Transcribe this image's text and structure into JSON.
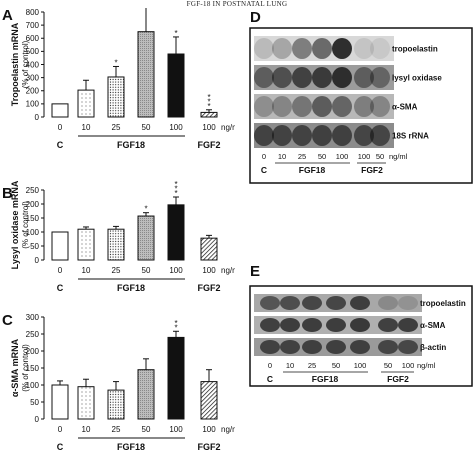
{
  "header": "FGF-18 IN POSTNATAL LUNG",
  "colors": {
    "axis": "#111111",
    "bar_fill": "#ffffff",
    "bar_dark": "#111111",
    "band": "#2a2a2a"
  },
  "chart_data": [
    {
      "type": "bar",
      "panel_letter": "A",
      "ylabel_lines": [
        "Tropoelastin mRNA",
        "(% of control)"
      ],
      "ylim": [
        0,
        800
      ],
      "yticks": [
        "0",
        "100",
        "200",
        "300",
        "400",
        "500",
        "600",
        "700",
        "800"
      ],
      "categories": [
        "0",
        "10",
        "25",
        "50",
        "100",
        "100"
      ],
      "values": [
        100,
        205,
        305,
        650,
        480,
        35
      ],
      "errors": [
        0,
        75,
        80,
        210,
        130,
        20
      ],
      "patterns": [
        "white",
        "dots",
        "dots-dense",
        "gray",
        "black",
        "hatch"
      ],
      "sig": [
        "",
        "",
        "*",
        "**",
        "*",
        "***"
      ],
      "unit_label": "ng/ml",
      "group_labels": [
        "C",
        "FGF18",
        "FGF2"
      ]
    },
    {
      "type": "bar",
      "panel_letter": "B",
      "ylabel_lines": [
        "Lysyl oxidase mRNA",
        "(% of control)"
      ],
      "ylim": [
        0,
        250
      ],
      "yticks": [
        "0",
        "50",
        "100",
        "150",
        "200",
        "250"
      ],
      "categories": [
        "0",
        "10",
        "25",
        "50",
        "100",
        "100"
      ],
      "values": [
        100,
        110,
        110,
        157,
        197,
        78
      ],
      "errors": [
        0,
        8,
        10,
        12,
        28,
        10
      ],
      "patterns": [
        "white",
        "dots",
        "dots-dense",
        "gray",
        "black",
        "hatch"
      ],
      "sig": [
        "",
        "",
        "",
        "*",
        "***",
        ""
      ],
      "unit_label": "ng/ml",
      "group_labels": [
        "C",
        "FGF18",
        "FGF2"
      ]
    },
    {
      "type": "bar",
      "panel_letter": "C",
      "ylabel_lines": [
        "α-SMA mRNA",
        "(% of control)"
      ],
      "ylim": [
        0,
        300
      ],
      "yticks": [
        "0",
        "50",
        "100",
        "150",
        "200",
        "250",
        "300"
      ],
      "categories": [
        "0",
        "10",
        "25",
        "50",
        "100",
        "100"
      ],
      "values": [
        100,
        95,
        85,
        145,
        240,
        110
      ],
      "errors": [
        12,
        22,
        25,
        32,
        18,
        35
      ],
      "patterns": [
        "white",
        "dots",
        "dots-dense",
        "gray",
        "black",
        "hatch"
      ],
      "sig": [
        "",
        "",
        "",
        "",
        "**",
        ""
      ],
      "unit_label": "ng/ml",
      "group_labels": [
        "C",
        "FGF18",
        "FGF2"
      ]
    }
  ],
  "blots": [
    {
      "panel_letter": "D",
      "bands": [
        "tropoelastin",
        "lysyl oxidase",
        "α-SMA",
        "18S rRNA"
      ],
      "lanes": [
        "0",
        "10",
        "25",
        "50",
        "100",
        "100",
        "50"
      ],
      "unit_label": "ng/ml",
      "group_labels": [
        "C",
        "FGF18",
        "FGF2"
      ]
    },
    {
      "panel_letter": "E",
      "bands": [
        "tropoelastin",
        "α-SMA",
        "β-actin"
      ],
      "lanes": [
        "0",
        "10",
        "25",
        "50",
        "100",
        "50",
        "100"
      ],
      "unit_label": "ng/ml",
      "group_labels": [
        "C",
        "FGF18",
        "FGF2"
      ]
    }
  ]
}
